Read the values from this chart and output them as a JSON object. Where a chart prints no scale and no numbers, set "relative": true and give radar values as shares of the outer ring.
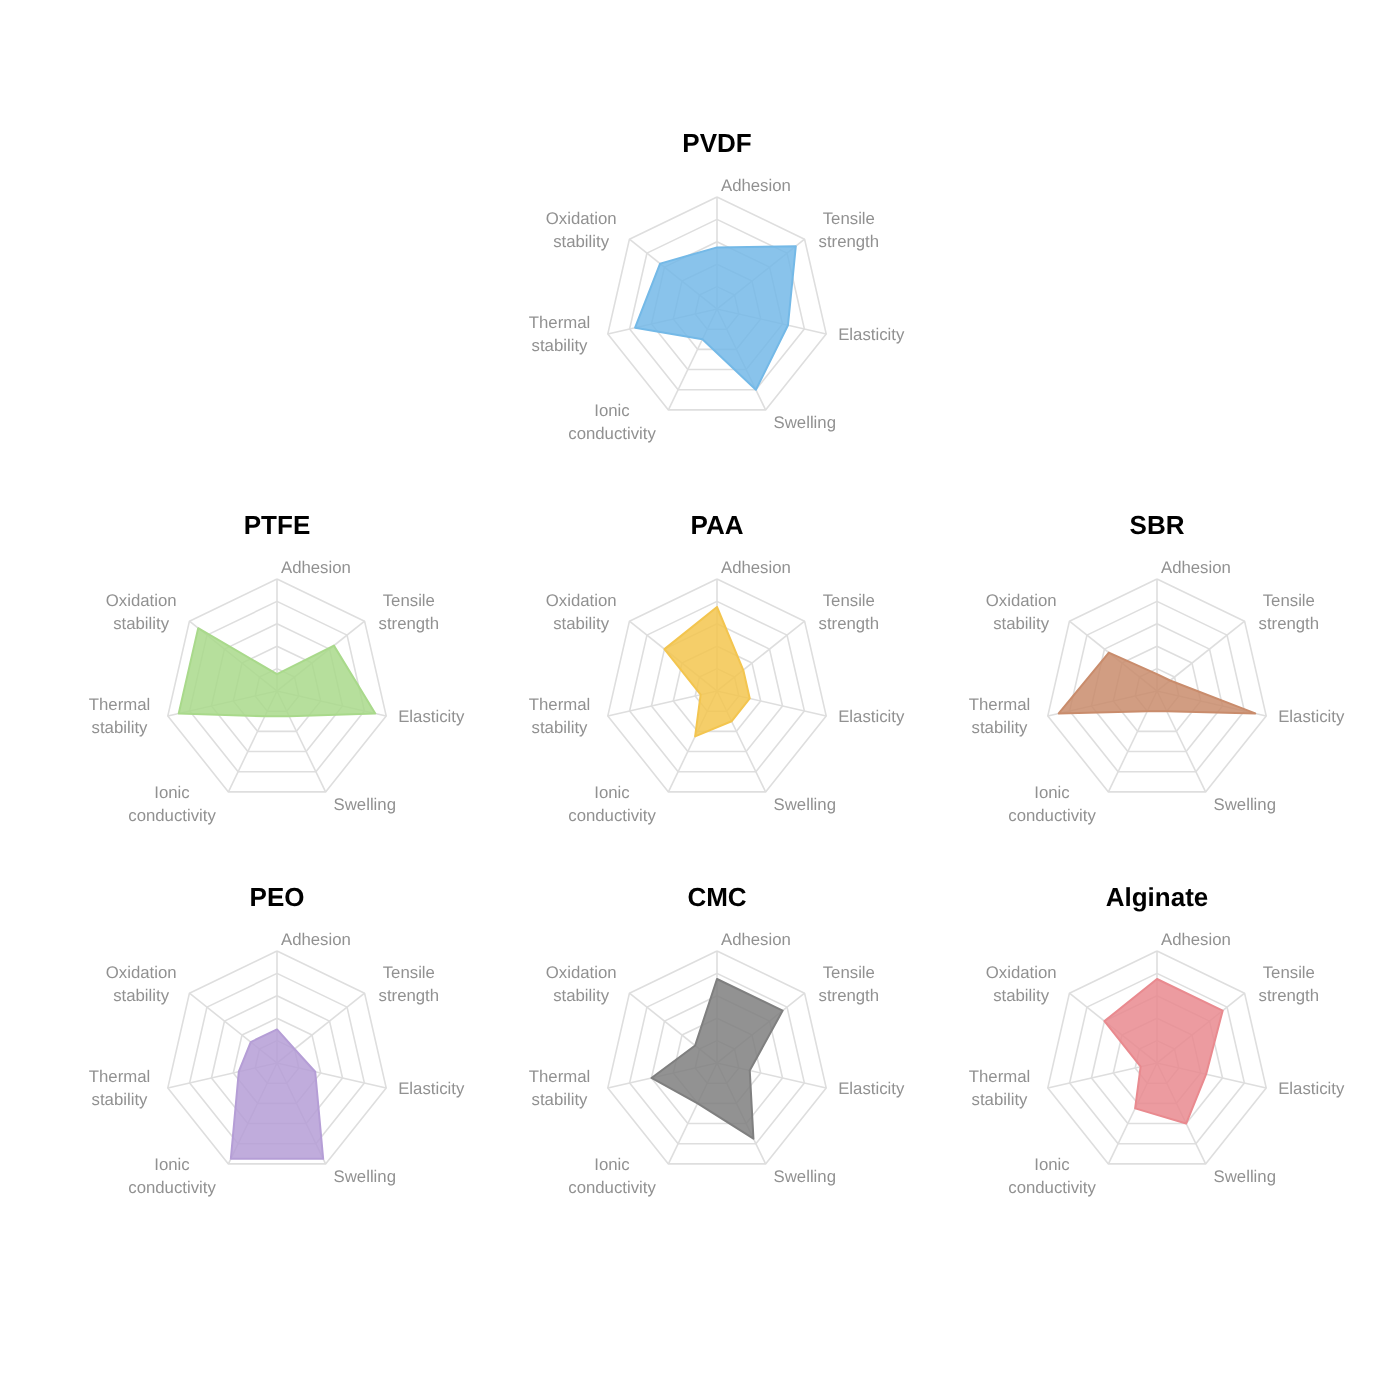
{
  "chart_data": [
    {
      "type": "radar",
      "title": "PVDF",
      "categories": [
        "Adhesion",
        "Tensile strength",
        "Elasticity",
        "Swelling",
        "Ionic conductivity",
        "Thermal stability",
        "Oxidation stability"
      ],
      "relative": true,
      "grid": true,
      "series": [
        {
          "color": "#74b9e7",
          "values": [
            0.55,
            0.9,
            0.65,
            0.8,
            0.3,
            0.75,
            0.65
          ]
        }
      ]
    },
    {
      "type": "radar",
      "title": "PTFE",
      "categories": [
        "Adhesion",
        "Tensile strength",
        "Elasticity",
        "Swelling",
        "Ionic conductivity",
        "Thermal stability",
        "Oxidation stability"
      ],
      "relative": true,
      "grid": true,
      "series": [
        {
          "color": "#a9d98b",
          "values": [
            0.15,
            0.65,
            0.9,
            0.25,
            0.25,
            0.9,
            0.9
          ]
        }
      ]
    },
    {
      "type": "radar",
      "title": "PAA",
      "categories": [
        "Adhesion",
        "Tensile strength",
        "Elasticity",
        "Swelling",
        "Ionic conductivity",
        "Thermal stability",
        "Oxidation stability"
      ],
      "relative": true,
      "grid": true,
      "series": [
        {
          "color": "#f3c54f",
          "values": [
            0.75,
            0.3,
            0.3,
            0.3,
            0.45,
            0.15,
            0.6
          ]
        }
      ]
    },
    {
      "type": "radar",
      "title": "SBR",
      "categories": [
        "Adhesion",
        "Tensile strength",
        "Elasticity",
        "Swelling",
        "Ionic conductivity",
        "Thermal stability",
        "Oxidation stability"
      ],
      "relative": true,
      "grid": true,
      "series": [
        {
          "color": "#c98c6c",
          "values": [
            0.15,
            0.15,
            0.9,
            0.2,
            0.2,
            0.9,
            0.55
          ]
        }
      ]
    },
    {
      "type": "radar",
      "title": "PEO",
      "categories": [
        "Adhesion",
        "Tensile strength",
        "Elasticity",
        "Swelling",
        "Ionic conductivity",
        "Thermal stability",
        "Oxidation stability"
      ],
      "relative": true,
      "grid": true,
      "series": [
        {
          "color": "#b59ed6",
          "values": [
            0.3,
            0.2,
            0.35,
            0.95,
            0.95,
            0.35,
            0.3
          ]
        }
      ]
    },
    {
      "type": "radar",
      "title": "CMC",
      "categories": [
        "Adhesion",
        "Tensile strength",
        "Elasticity",
        "Swelling",
        "Ionic conductivity",
        "Thermal stability",
        "Oxidation stability"
      ],
      "relative": true,
      "grid": true,
      "series": [
        {
          "color": "#7f7f7f",
          "values": [
            0.75,
            0.75,
            0.3,
            0.75,
            0.4,
            0.6,
            0.25
          ]
        }
      ]
    },
    {
      "type": "radar",
      "title": "Alginate",
      "categories": [
        "Adhesion",
        "Tensile strength",
        "Elasticity",
        "Swelling",
        "Ionic conductivity",
        "Thermal stability",
        "Oxidation stability"
      ],
      "relative": true,
      "grid": true,
      "series": [
        {
          "color": "#e98a8f",
          "values": [
            0.75,
            0.75,
            0.45,
            0.6,
            0.45,
            0.15,
            0.6
          ]
        }
      ]
    }
  ]
}
